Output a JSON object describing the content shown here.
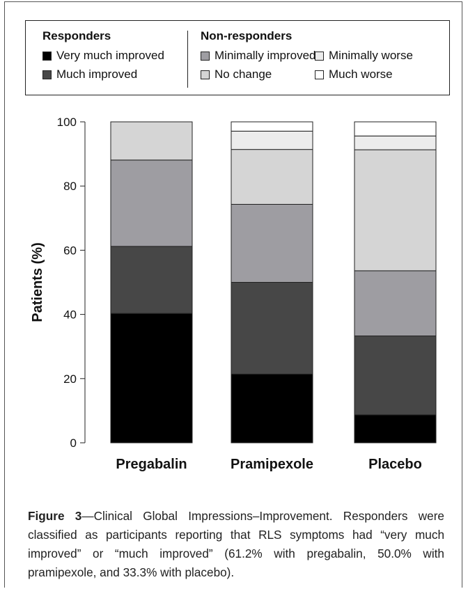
{
  "legend": {
    "responders_title": "Responders",
    "nonresponders_title": "Non-responders",
    "items": [
      {
        "label": "Very much improved",
        "color": "#000000"
      },
      {
        "label": "Much improved",
        "color": "#474747"
      },
      {
        "label": "Minimally improved",
        "color": "#9e9da2"
      },
      {
        "label": "No change",
        "color": "#d5d5d5"
      },
      {
        "label": "Minimally worse",
        "color": "#ececec"
      },
      {
        "label": "Much worse",
        "color": "#ffffff"
      }
    ]
  },
  "chart_data": {
    "type": "bar",
    "stacked": true,
    "ylabel": "Patients (%)",
    "ylim": [
      0,
      100
    ],
    "yticks": [
      "0",
      "20",
      "40",
      "60",
      "80",
      "100"
    ],
    "yticks_values": [
      0,
      20,
      40,
      60,
      80,
      100
    ],
    "categories": [
      "Pregabalin",
      "Pramipexole",
      "Placebo"
    ],
    "series": [
      {
        "name": "Very much improved",
        "values": [
          40.3,
          21.4,
          8.7
        ]
      },
      {
        "name": "Much improved",
        "values": [
          20.9,
          28.6,
          24.6
        ]
      },
      {
        "name": "Minimally improved",
        "values": [
          26.9,
          24.3,
          20.3
        ]
      },
      {
        "name": "No change",
        "values": [
          11.9,
          17.1,
          37.7
        ]
      },
      {
        "name": "Minimally worse",
        "values": [
          0,
          5.7,
          4.3
        ]
      },
      {
        "name": "Much worse",
        "values": [
          0,
          2.9,
          4.4
        ]
      }
    ],
    "grid": false
  },
  "caption": {
    "label": "Figure 3",
    "text": "—Clinical Global Impressions–Improvement. Responders were classified as participants reporting that RLS symptoms had “very much improved” or “much improved” (61.2% with pregabalin, 50.0% with pramipexole, and 33.3% with placebo)."
  }
}
